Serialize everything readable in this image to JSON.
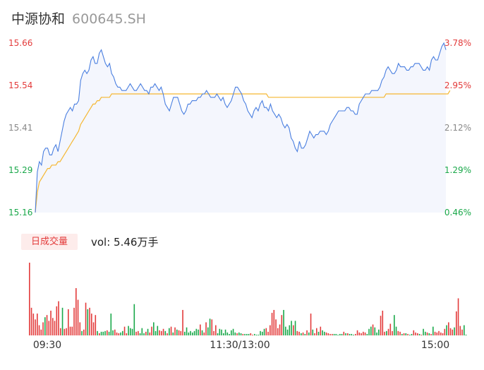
{
  "header": {
    "name": "中源协和",
    "code": "600645.SH"
  },
  "colors": {
    "up": "#e33b3b",
    "down": "#1aa84a",
    "neutral": "#888888",
    "price_line": "#4a7fe0",
    "avg_line": "#f5b731",
    "area_fill": "#f4f6fd"
  },
  "volume_panel": {
    "badge_label": "日成交量",
    "vol_text": "vol: 5.46万手"
  },
  "chart_data": [
    {
      "type": "line",
      "series": [],
      "y_ticks": [
        "15.66",
        "15.54",
        "15.41",
        "15.29",
        "15.16"
      ],
      "y_right_ticks": [
        "3.78%",
        "2.95%",
        "2.12%",
        "1.29%",
        "0.46%"
      ],
      "ylim": [
        15.16,
        15.66
      ],
      "x_ticks": [
        "09:30",
        "11:30/13:00",
        "15:00"
      ],
      "price": [
        15.16,
        15.28,
        15.31,
        15.3,
        15.34,
        15.35,
        15.35,
        15.33,
        15.33,
        15.35,
        15.36,
        15.34,
        15.37,
        15.4,
        15.43,
        15.45,
        15.46,
        15.47,
        15.46,
        15.48,
        15.48,
        15.49,
        15.55,
        15.57,
        15.58,
        15.57,
        15.58,
        15.61,
        15.62,
        15.6,
        15.6,
        15.63,
        15.64,
        15.62,
        15.6,
        15.59,
        15.6,
        15.57,
        15.56,
        15.54,
        15.53,
        15.53,
        15.52,
        15.52,
        15.52,
        15.53,
        15.54,
        15.53,
        15.52,
        15.52,
        15.53,
        15.54,
        15.53,
        15.52,
        15.52,
        15.51,
        15.53,
        15.53,
        15.54,
        15.53,
        15.52,
        15.53,
        15.51,
        15.48,
        15.47,
        15.46,
        15.48,
        15.5,
        15.5,
        15.5,
        15.48,
        15.46,
        15.45,
        15.46,
        15.48,
        15.48,
        15.49,
        15.49,
        15.49,
        15.5,
        15.5,
        15.51,
        15.51,
        15.52,
        15.51,
        15.5,
        15.5,
        15.5,
        15.51,
        15.5,
        15.49,
        15.5,
        15.48,
        15.47,
        15.48,
        15.49,
        15.51,
        15.53,
        15.53,
        15.52,
        15.51,
        15.49,
        15.48,
        15.46,
        15.45,
        15.44,
        15.46,
        15.47,
        15.46,
        15.48,
        15.49,
        15.47,
        15.47,
        15.46,
        15.48,
        15.46,
        15.45,
        15.44,
        15.45,
        15.44,
        15.42,
        15.41,
        15.42,
        15.41,
        15.38,
        15.37,
        15.35,
        15.34,
        15.37,
        15.35,
        15.35,
        15.36,
        15.38,
        15.4,
        15.39,
        15.38,
        15.39,
        15.39,
        15.4,
        15.4,
        15.4,
        15.39,
        15.4,
        15.42,
        15.43,
        15.44,
        15.45,
        15.46,
        15.46,
        15.46,
        15.46,
        15.47,
        15.47,
        15.46,
        15.46,
        15.45,
        15.45,
        15.48,
        15.49,
        15.5,
        15.51,
        15.51,
        15.51,
        15.52,
        15.52,
        15.52,
        15.52,
        15.53,
        15.55,
        15.56,
        15.58,
        15.59,
        15.58,
        15.57,
        15.57,
        15.58,
        15.6,
        15.59,
        15.59,
        15.59,
        15.58,
        15.58,
        15.59,
        15.59,
        15.6,
        15.6,
        15.6,
        15.59,
        15.58,
        15.58,
        15.59,
        15.58,
        15.61,
        15.62,
        15.61,
        15.61,
        15.63,
        15.65,
        15.66,
        15.64
      ],
      "avg_price": [
        15.16,
        15.22,
        15.25,
        15.26,
        15.27,
        15.28,
        15.29,
        15.29,
        15.3,
        15.3,
        15.3,
        15.31,
        15.31,
        15.32,
        15.33,
        15.34,
        15.35,
        15.36,
        15.37,
        15.38,
        15.39,
        15.4,
        15.42,
        15.43,
        15.44,
        15.45,
        15.46,
        15.47,
        15.48,
        15.48,
        15.49,
        15.49,
        15.5,
        15.5,
        15.5,
        15.5,
        15.5,
        15.51,
        15.51,
        15.51,
        15.51,
        15.51,
        15.51,
        15.51,
        15.51,
        15.51,
        15.51,
        15.51,
        15.51,
        15.51,
        15.51,
        15.51,
        15.51,
        15.51,
        15.51,
        15.51,
        15.51,
        15.51,
        15.51,
        15.51,
        15.51,
        15.51,
        15.51,
        15.51,
        15.51,
        15.51,
        15.51,
        15.51,
        15.51,
        15.51,
        15.51,
        15.51,
        15.51,
        15.51,
        15.51,
        15.51,
        15.51,
        15.51,
        15.51,
        15.51,
        15.51,
        15.51,
        15.51,
        15.51,
        15.51,
        15.51,
        15.51,
        15.51,
        15.51,
        15.51,
        15.51,
        15.51,
        15.51,
        15.51,
        15.51,
        15.51,
        15.51,
        15.51,
        15.51,
        15.51,
        15.51,
        15.51,
        15.51,
        15.51,
        15.51,
        15.51,
        15.51,
        15.51,
        15.51,
        15.51,
        15.51,
        15.51,
        15.51,
        15.5,
        15.5,
        15.5,
        15.5,
        15.5,
        15.5,
        15.5,
        15.5,
        15.5,
        15.5,
        15.5,
        15.5,
        15.5,
        15.5,
        15.5,
        15.5,
        15.5,
        15.5,
        15.5,
        15.5,
        15.5,
        15.5,
        15.5,
        15.5,
        15.5,
        15.5,
        15.5,
        15.5,
        15.5,
        15.5,
        15.5,
        15.5,
        15.5,
        15.5,
        15.5,
        15.5,
        15.5,
        15.5,
        15.5,
        15.5,
        15.5,
        15.5,
        15.5,
        15.5,
        15.5,
        15.5,
        15.5,
        15.5,
        15.5,
        15.5,
        15.5,
        15.5,
        15.5,
        15.5,
        15.5,
        15.5,
        15.5,
        15.51,
        15.51,
        15.51,
        15.51,
        15.51,
        15.51,
        15.51,
        15.51,
        15.51,
        15.51,
        15.51,
        15.51,
        15.51,
        15.51,
        15.51,
        15.51,
        15.51,
        15.51,
        15.51,
        15.51,
        15.51,
        15.51,
        15.51,
        15.51,
        15.51,
        15.51,
        15.51,
        15.51,
        15.51,
        15.51,
        15.51,
        15.52
      ]
    },
    {
      "type": "bar",
      "series": [],
      "ylim": [
        0,
        100
      ],
      "volume": [
        100,
        38,
        30,
        22,
        30,
        14,
        8,
        18,
        25,
        28,
        20,
        34,
        24,
        20,
        40,
        47,
        10,
        38,
        9,
        10,
        36,
        12,
        12,
        38,
        65,
        49,
        18,
        6,
        8,
        45,
        36,
        38,
        30,
        18,
        28,
        6,
        3,
        5,
        5,
        6,
        7,
        5,
        30,
        7,
        8,
        4,
        3,
        4,
        6,
        12,
        3,
        13,
        10,
        9,
        43,
        5,
        6,
        3,
        10,
        3,
        5,
        9,
        4,
        12,
        18,
        6,
        13,
        7,
        6,
        9,
        6,
        3,
        10,
        12,
        4,
        11,
        8,
        7,
        6,
        35,
        5,
        11,
        4,
        6,
        4,
        6,
        9,
        8,
        15,
        7,
        4,
        18,
        11,
        23,
        22,
        6,
        14,
        3,
        9,
        8,
        3,
        8,
        4,
        2,
        7,
        9,
        4,
        3,
        4,
        3,
        2,
        2,
        2,
        2,
        3,
        1,
        2,
        1,
        1,
        6,
        5,
        9,
        10,
        5,
        14,
        31,
        35,
        22,
        10,
        15,
        28,
        35,
        12,
        8,
        14,
        20,
        14,
        20,
        6,
        5,
        3,
        4,
        2,
        7,
        4,
        30,
        8,
        3,
        10,
        5,
        12,
        7,
        5,
        4,
        3,
        2,
        2,
        2,
        2,
        1,
        2,
        2,
        5,
        3,
        3,
        2,
        2,
        1,
        2,
        7,
        4,
        3,
        5,
        4,
        2,
        9,
        12,
        15,
        11,
        4,
        8,
        27,
        34,
        5,
        6,
        9,
        16,
        6,
        28,
        12,
        6,
        5,
        2,
        3,
        3,
        2,
        1,
        2,
        7,
        4,
        3,
        2,
        1,
        9,
        5,
        4,
        3,
        2,
        12,
        5,
        4,
        6,
        4,
        3,
        9,
        14,
        18,
        10,
        8,
        11,
        33,
        51,
        13,
        8,
        14,
        1
      ],
      "volume_dir": [
        "u",
        "u",
        "u",
        "u",
        "u",
        "u",
        "u",
        "u",
        "d",
        "u",
        "u",
        "u",
        "u",
        "u",
        "u",
        "u",
        "u",
        "d",
        "u",
        "u",
        "u",
        "u",
        "u",
        "u",
        "u",
        "u",
        "u",
        "d",
        "u",
        "u",
        "d",
        "u",
        "u",
        "u",
        "u",
        "d",
        "u",
        "d",
        "d",
        "d",
        "u",
        "d",
        "d",
        "d",
        "u",
        "u",
        "u",
        "d",
        "d",
        "u",
        "u",
        "d",
        "d",
        "d",
        "d",
        "u",
        "u",
        "d",
        "d",
        "d",
        "u",
        "d",
        "u",
        "u",
        "d",
        "d",
        "d",
        "u",
        "u",
        "u",
        "d",
        "u",
        "d",
        "u",
        "d",
        "u",
        "d",
        "u",
        "u",
        "u",
        "d",
        "d",
        "d",
        "d",
        "d",
        "d",
        "d",
        "d",
        "u",
        "d",
        "u",
        "u",
        "d",
        "d",
        "u",
        "u",
        "u",
        "d",
        "d",
        "d",
        "d",
        "d",
        "d",
        "d",
        "d",
        "d",
        "d",
        "u",
        "d",
        "d",
        "u",
        "d",
        "d",
        "d",
        "u",
        "u",
        "d",
        "d",
        "d",
        "d",
        "d",
        "d",
        "u",
        "u",
        "u",
        "u",
        "u",
        "u",
        "u",
        "u",
        "u",
        "d",
        "d",
        "d",
        "d",
        "d",
        "u",
        "d",
        "u",
        "u",
        "d",
        "u",
        "d",
        "u",
        "d",
        "u",
        "d",
        "u",
        "u",
        "d",
        "u",
        "d",
        "d",
        "u",
        "u",
        "u",
        "u",
        "d",
        "d",
        "d",
        "d",
        "d",
        "u",
        "d",
        "u",
        "d",
        "d",
        "d",
        "u",
        "u",
        "u",
        "u",
        "u",
        "u",
        "d",
        "d",
        "d",
        "u",
        "d",
        "d",
        "d",
        "u",
        "u",
        "u",
        "d",
        "u",
        "u",
        "u",
        "d",
        "d",
        "u",
        "u",
        "d",
        "u",
        "d",
        "u",
        "d",
        "d",
        "u",
        "u",
        "u",
        "d",
        "u",
        "d",
        "d",
        "u",
        "d",
        "u",
        "d",
        "u",
        "u",
        "u",
        "u",
        "u",
        "u",
        "d",
        "u",
        "u",
        "u",
        "d",
        "u",
        "u",
        "u",
        "u",
        "d",
        "d"
      ]
    }
  ]
}
